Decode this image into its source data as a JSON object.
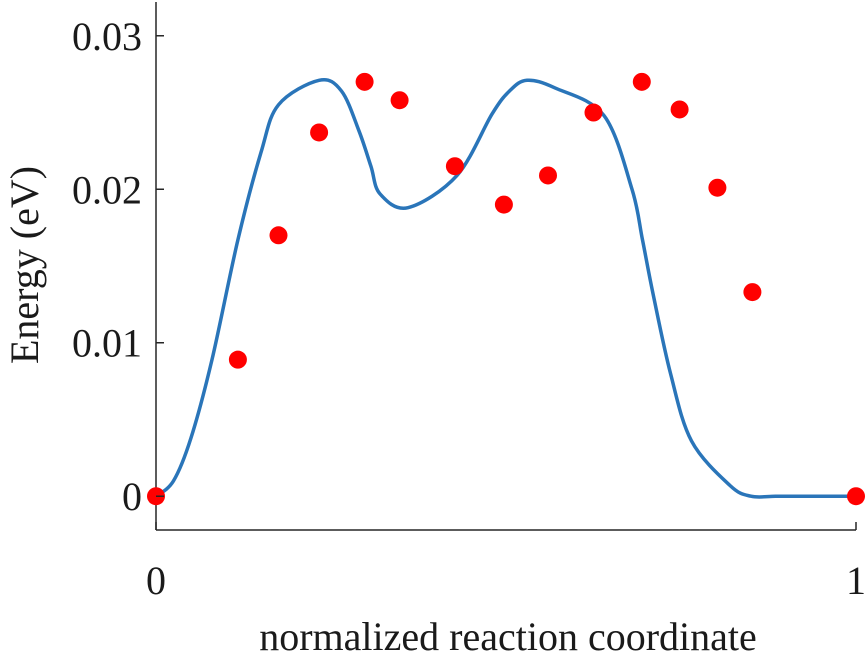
{
  "chart_data": {
    "type": "line",
    "xlabel": "normalized reaction coordinate",
    "ylabel": "Energy (eV)",
    "xlim": [
      0,
      1
    ],
    "ylim": [
      -0.0022,
      0.0322
    ],
    "xticks": [
      0,
      1
    ],
    "xtick_labels": [
      "0",
      "1"
    ],
    "yticks": [
      0,
      0.01,
      0.02,
      0.03
    ],
    "ytick_labels": [
      "0",
      "0.01",
      "0.02",
      "0.03"
    ],
    "grid": false,
    "legend": "none",
    "series": [
      {
        "style": "curve",
        "color": "#2a75b9",
        "x": [
          0,
          0.025,
          0.05,
          0.08,
          0.117,
          0.15,
          0.175,
          0.233,
          0.265,
          0.29,
          0.307,
          0.32,
          0.36,
          0.43,
          0.48,
          0.505,
          0.53,
          0.57,
          0.64,
          0.68,
          0.695,
          0.71,
          0.735,
          0.765,
          0.82,
          0.85,
          0.885,
          0.92,
          0.95,
          0.975,
          1.0
        ],
        "y": [
          0.0,
          0.001,
          0.0038,
          0.0089,
          0.0167,
          0.0224,
          0.0255,
          0.0271,
          0.0264,
          0.0238,
          0.0215,
          0.0197,
          0.0188,
          0.0209,
          0.0249,
          0.0264,
          0.0271,
          0.0266,
          0.0248,
          0.02,
          0.0167,
          0.0132,
          0.008,
          0.0036,
          0.0007,
          0.0,
          0.0,
          0.0,
          0.0,
          0.0,
          0.0
        ]
      },
      {
        "style": "markers",
        "color": "#ff0000",
        "x": [
          0.0,
          0.117,
          0.175,
          0.233,
          0.298,
          0.348,
          0.427,
          0.497,
          0.56,
          0.625,
          0.694,
          0.748,
          0.802,
          0.852,
          1.0
        ],
        "y": [
          0.0,
          0.0089,
          0.017,
          0.0237,
          0.027,
          0.0258,
          0.0215,
          0.019,
          0.0209,
          0.025,
          0.027,
          0.0252,
          0.0201,
          0.0133,
          0.0
        ]
      }
    ]
  }
}
